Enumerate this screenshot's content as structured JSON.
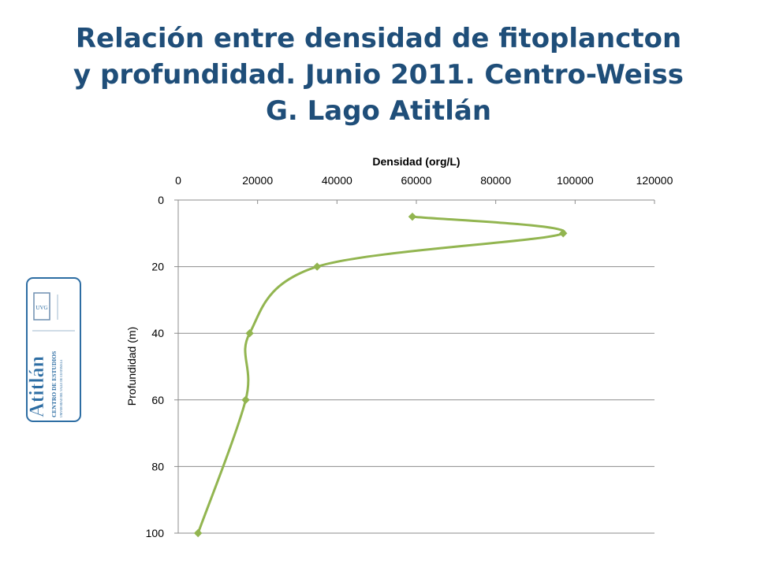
{
  "title_lines": [
    "Relación entre densidad de fitoplancton",
    "y profundidad. Junio 2011. Centro-Weiss",
    "G. Lago Atitlán"
  ],
  "logo": {
    "icon": "centro-de-estudios-atitlan-logo",
    "text": "Atitlán",
    "subtext": "CENTRO DE ESTUDIOS",
    "university": "UNIVERSIDAD DEL VALLE DE GUATEMALA",
    "seal": "UVG"
  },
  "colors": {
    "title": "#1f4e79",
    "series": "#92b550",
    "grid": "#8c8c8c",
    "logo": "#2d6da3"
  },
  "chart_data": {
    "type": "line",
    "orientation": "depth-profile",
    "xlabel": "Densidad (org/L)",
    "ylabel": "Profundidad (m)",
    "x_axis_position": "top",
    "y_axis_reversed": true,
    "xlim": [
      0,
      120000
    ],
    "ylim": [
      0,
      100
    ],
    "x_ticks": [
      0,
      20000,
      40000,
      60000,
      80000,
      100000,
      120000
    ],
    "y_ticks": [
      0,
      20,
      40,
      60,
      80,
      100
    ],
    "grid": "horizontal",
    "legend": "none",
    "smoothed": true,
    "marker": "diamond",
    "points": [
      {
        "x": 59000,
        "y": 5
      },
      {
        "x": 97000,
        "y": 10
      },
      {
        "x": 35000,
        "y": 20
      },
      {
        "x": 18000,
        "y": 40
      },
      {
        "x": 17000,
        "y": 60
      },
      {
        "x": 5000,
        "y": 100
      }
    ]
  }
}
